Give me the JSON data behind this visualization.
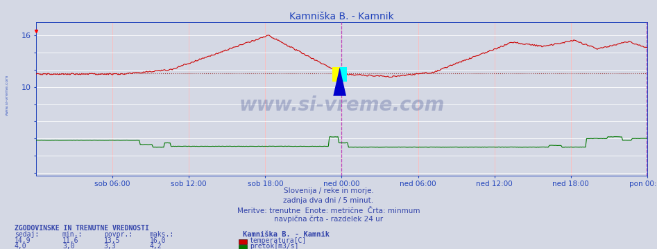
{
  "title": "Kamniška B. - Kamnik",
  "title_color": "#2244bb",
  "bg_color": "#d4d8e4",
  "plot_bg_color": "#d4d8e4",
  "grid_color_v": "#ffbbbb",
  "grid_color_h": "#ffffff",
  "axis_color": "#2244bb",
  "tick_color": "#2244bb",
  "ylim": [
    -0.3,
    17.5
  ],
  "ytick_vals": [
    0,
    2,
    4,
    6,
    8,
    10,
    12,
    14,
    16
  ],
  "ytick_labels": [
    "",
    "",
    "",
    "",
    "",
    "10",
    "",
    "",
    "16"
  ],
  "x_labels": [
    "sob 06:00",
    "sob 12:00",
    "sob 18:00",
    "ned 00:00",
    "ned 06:00",
    "ned 12:00",
    "ned 18:00",
    "pon 00:00"
  ],
  "x_tick_frac": [
    0.125,
    0.25,
    0.375,
    0.5,
    0.625,
    0.75,
    0.875,
    1.0
  ],
  "temp_color": "#cc0000",
  "flow_color": "#007700",
  "avg_temp_color": "#993333",
  "avg_temp_value": 11.6,
  "vline_color": "#bb44bb",
  "watermark": "www.si-vreme.com",
  "watermark_color": "#334488",
  "watermark_alpha": 0.28,
  "footer_color": "#3344aa",
  "footer_lines": [
    "Slovenija / reke in morje.",
    "zadnja dva dni / 5 minut.",
    "Meritve: trenutne  Enote: metrične  Črta: minmum",
    "navpična črta - razdelek 24 ur"
  ],
  "table_header": "ZGODOVINSKE IN TRENUTNE VREDNOSTI",
  "table_cols": [
    "sedaj:",
    "min.:",
    "povpr.:",
    "maks.:"
  ],
  "station_name": "Kamniška B. - Kamnik",
  "temp_vals": [
    "14,9",
    "11,6",
    "13,5",
    "16,0"
  ],
  "flow_vals": [
    "4,0",
    "3,0",
    "3,3",
    "4,2"
  ],
  "temp_label": "temperatura[C]",
  "flow_label": "pretok[m3/s]",
  "left_label": "www.si-vreme.com",
  "left_label_color": "#2244bb"
}
